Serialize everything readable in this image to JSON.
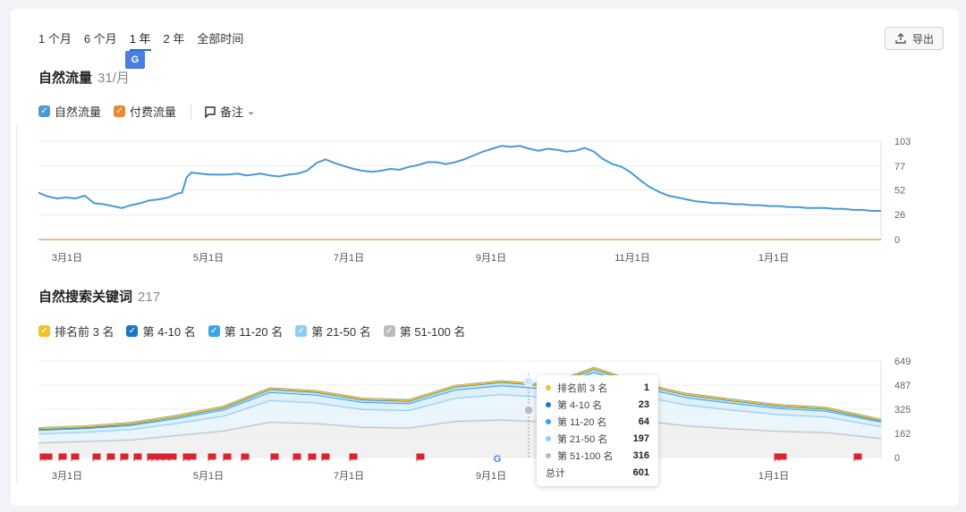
{
  "tabs": [
    {
      "label": "1 个月"
    },
    {
      "label": "6 个月"
    },
    {
      "label": "1 年"
    },
    {
      "label": "2 年"
    },
    {
      "label": "全部时间"
    }
  ],
  "export_label": "导出",
  "translate_icon_text": "G",
  "colors": {
    "organic": "#4a9ad4",
    "paid": "#e8883a",
    "top3": "#f2c12e",
    "r4_10": "#1a78c2",
    "r11_20": "#38a6e8",
    "r21_50": "#8fcdf2",
    "r51_100": "#bcbcbc",
    "flag": "#d9232f"
  },
  "traffic": {
    "title": "自然流量",
    "count": "31/月",
    "legend": [
      "自然流量",
      "付费流量"
    ],
    "note_label": "备注"
  },
  "keywords": {
    "title": "自然搜索关键词",
    "count": "217",
    "legend": [
      "排名前 3 名",
      "第 4-10 名",
      "第 11-20 名",
      "第 21-50 名",
      "第 51-100 名"
    ],
    "google_marker": "G"
  },
  "tooltip": {
    "rows": [
      {
        "label": "排名前 3 名",
        "value": "1"
      },
      {
        "label": "第 4-10 名",
        "value": "23"
      },
      {
        "label": "第 11-20 名",
        "value": "64"
      },
      {
        "label": "第 21-50 名",
        "value": "197"
      },
      {
        "label": "第 51-100 名",
        "value": "316"
      }
    ],
    "total_label": "总计",
    "total_value": "601"
  },
  "chart_data": [
    {
      "type": "line",
      "title": "自然流量",
      "x_labels": [
        "3月1日",
        "5月1日",
        "7月1日",
        "9月1日",
        "11月1日",
        "1月1日"
      ],
      "y_ticks": [
        0,
        26,
        52,
        77,
        103
      ],
      "ylim": [
        0,
        103
      ],
      "series": [
        {
          "name": "自然流量",
          "x": [
            0,
            4,
            8,
            12,
            16,
            20,
            24,
            28,
            32,
            36,
            40,
            44,
            48,
            52,
            56,
            60,
            62,
            64,
            66,
            70,
            74,
            78,
            82,
            86,
            90,
            96,
            100,
            104,
            108,
            112,
            116,
            120,
            124,
            128,
            132,
            136,
            140,
            144,
            148,
            152,
            156,
            160,
            164,
            168,
            172,
            176,
            180,
            184,
            188,
            192,
            196,
            200,
            204,
            208,
            212,
            216,
            220,
            224,
            228,
            232,
            236,
            240,
            244,
            248,
            252,
            256,
            260,
            264,
            268,
            272,
            276,
            280,
            284,
            288,
            292,
            296,
            300,
            304,
            308,
            312,
            316,
            320,
            324,
            328,
            332,
            336,
            340,
            344,
            348,
            352,
            356,
            360,
            364
          ],
          "values": [
            49,
            45,
            43,
            44,
            43,
            46,
            38,
            37,
            35,
            33,
            36,
            38,
            41,
            42,
            44,
            48,
            49,
            65,
            70,
            69,
            68,
            68,
            68,
            69,
            67,
            69,
            67,
            66,
            68,
            69,
            72,
            80,
            84,
            80,
            77,
            74,
            72,
            71,
            72,
            74,
            73,
            76,
            78,
            81,
            81,
            79,
            81,
            84,
            88,
            92,
            95,
            98,
            97,
            98,
            95,
            93,
            95,
            94,
            92,
            93,
            96,
            92,
            84,
            79,
            76,
            70,
            62,
            55,
            50,
            46,
            44,
            42,
            40,
            39,
            38,
            38,
            37,
            37,
            36,
            36,
            35,
            35,
            34,
            34,
            33,
            33,
            33,
            32,
            32,
            31,
            31,
            30,
            30
          ]
        },
        {
          "name": "付费流量",
          "x": [
            0,
            364
          ],
          "values": [
            0,
            0
          ]
        }
      ]
    },
    {
      "type": "area",
      "title": "自然搜索关键词",
      "x_labels": [
        "3月1日",
        "5月1日",
        "7月1日",
        "9月1日",
        "11月1日",
        "1月1日"
      ],
      "y_ticks": [
        0,
        162,
        325,
        487,
        649
      ],
      "ylim": [
        0,
        649
      ],
      "x": [
        0,
        20,
        40,
        60,
        80,
        100,
        120,
        140,
        160,
        180,
        200,
        220,
        240,
        260,
        280,
        300,
        320,
        340,
        364
      ],
      "series": [
        {
          "name": "排名前 3 名",
          "values": [
            1,
            1,
            1,
            1,
            1,
            1,
            1,
            1,
            1,
            1,
            1,
            1,
            1,
            1,
            1,
            1,
            1,
            1,
            1
          ]
        },
        {
          "name": "第 4-10 名",
          "values": [
            10,
            10,
            11,
            13,
            17,
            22,
            22,
            20,
            19,
            23,
            25,
            24,
            23,
            22,
            20,
            19,
            17,
            16,
            12
          ]
        },
        {
          "name": "第 11-20 名",
          "values": [
            25,
            25,
            28,
            33,
            42,
            55,
            54,
            48,
            46,
            56,
            60,
            58,
            64,
            58,
            50,
            46,
            42,
            40,
            30
          ]
        },
        {
          "name": "第 21-50 名",
          "values": [
            60,
            62,
            70,
            82,
            100,
            145,
            138,
            120,
            118,
            155,
            170,
            165,
            197,
            165,
            140,
            125,
            112,
            105,
            80
          ]
        },
        {
          "name": "第 51-100 名",
          "values": [
            100,
            110,
            120,
            150,
            180,
            240,
            230,
            205,
            200,
            245,
            255,
            240,
            316,
            250,
            215,
            195,
            178,
            170,
            130
          ]
        }
      ],
      "tooltip_total": 601
    }
  ]
}
